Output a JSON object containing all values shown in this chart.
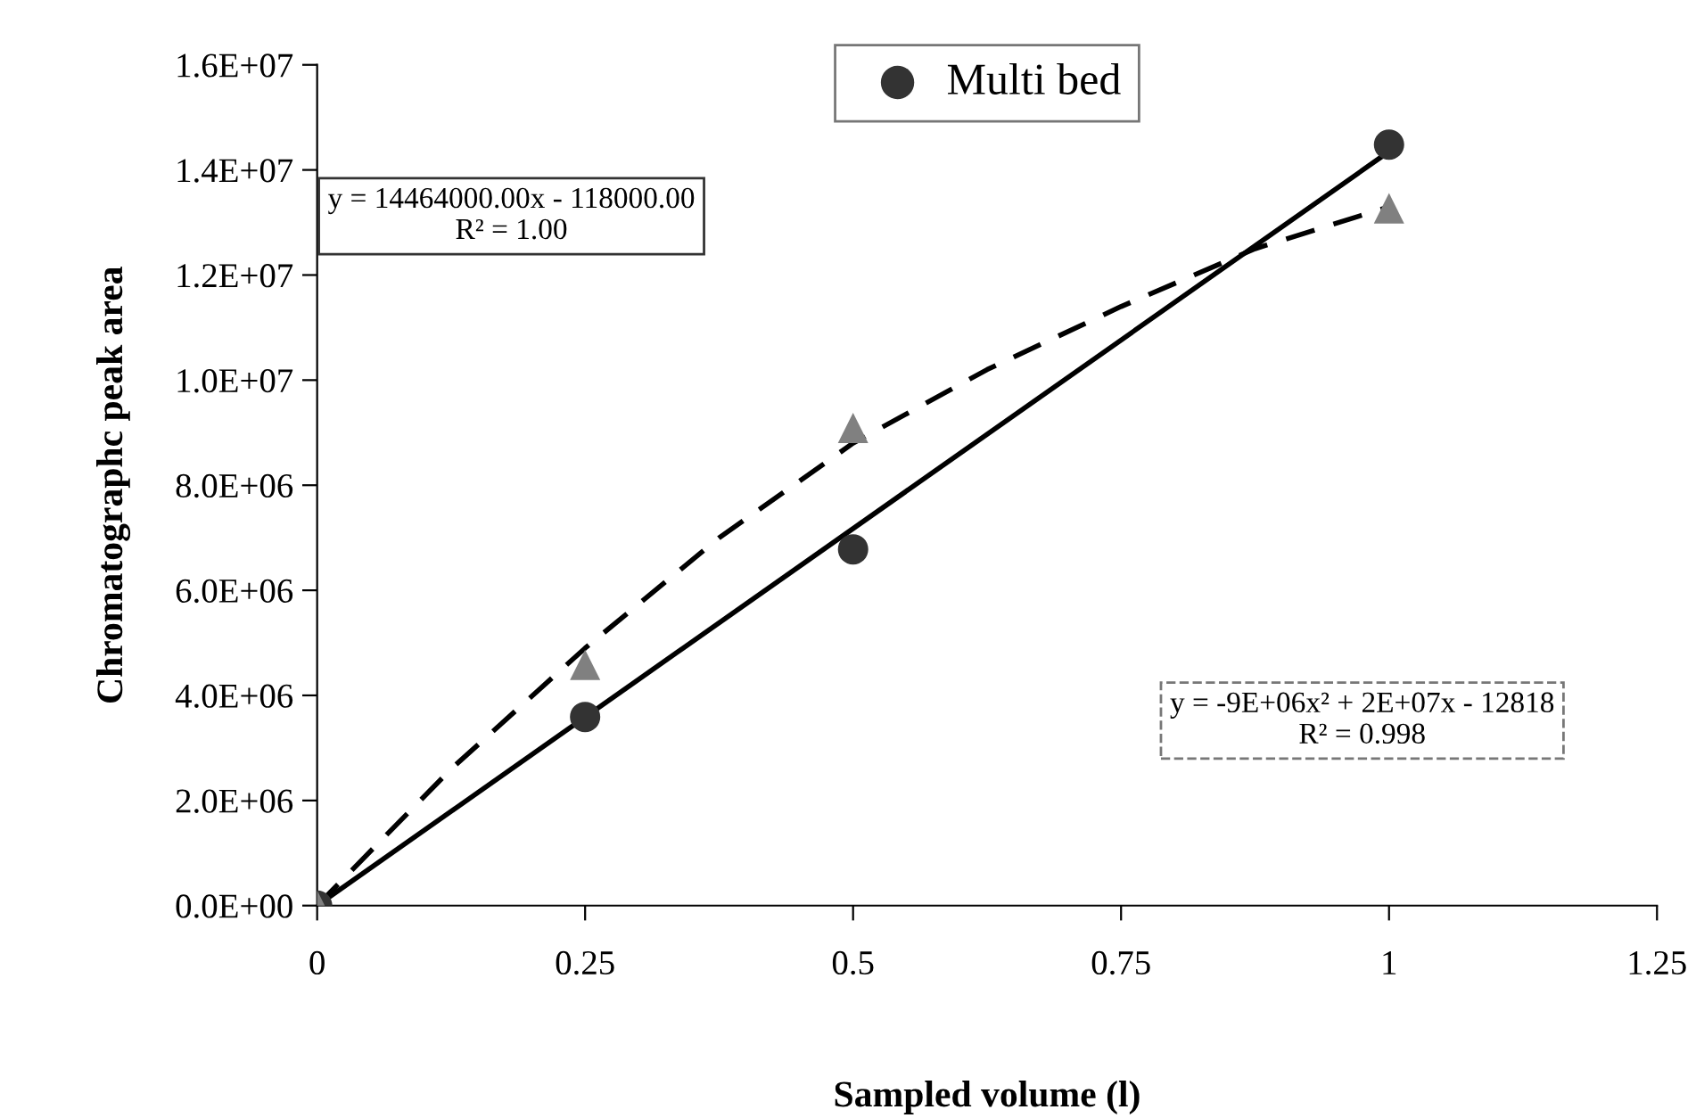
{
  "chart_data": {
    "type": "scatter",
    "xlabel": "Sampled volume (l)",
    "ylabel": "Chromatographc peak area",
    "xlim": [
      0,
      1.25
    ],
    "xticks": [
      0,
      0.25,
      0.5,
      0.75,
      1,
      1.25
    ],
    "ylim": [
      0,
      16000000
    ],
    "yticks": [
      {
        "value": 0,
        "label": "0.0E+00"
      },
      {
        "value": 2000000,
        "label": "2.0E+06"
      },
      {
        "value": 4000000,
        "label": "4.0E+06"
      },
      {
        "value": 6000000,
        "label": "6.0E+06"
      },
      {
        "value": 8000000,
        "label": "8.0E+06"
      },
      {
        "value": 10000000,
        "label": "1.0E+07"
      },
      {
        "value": 12000000,
        "label": "1.2E+07"
      },
      {
        "value": 14000000,
        "label": "1.4E+07"
      },
      {
        "value": 16000000,
        "label": "1.6E+07"
      }
    ],
    "grid": false,
    "legend": "top",
    "series": [
      {
        "type": "line",
        "color": "#000000",
        "line_style": "solid",
        "marker": "none",
        "x": [
          0,
          1
        ],
        "values": [
          0,
          14350000
        ]
      },
      {
        "type": "line",
        "color": "#000000",
        "line_style": "dashed",
        "marker": "none",
        "x": [
          0,
          0.125,
          0.25,
          0.375,
          0.5,
          0.625,
          0.75,
          0.875,
          1
        ],
        "values": [
          0,
          2600000,
          4900000,
          7000000,
          8800000,
          10200000,
          11400000,
          12500000,
          13300000
        ]
      },
      {
        "name": "Multi bed",
        "color": "#333333",
        "marker": "circle",
        "x": [
          0,
          0.25,
          0.5,
          1
        ],
        "values": [
          0,
          3590000,
          6780000,
          14480000
        ]
      },
      {
        "color": "#808080",
        "marker": "triangle",
        "x": [
          0,
          0.25,
          0.5,
          1
        ],
        "values": [
          0,
          4580000,
          9090000,
          13270000
        ]
      }
    ],
    "annotations": [
      "y = 14464000.00x - 118000.00\nR² = 1.00",
      "y = -9E+06x² + 2E+07x - 12818\nR² = 0.998"
    ]
  }
}
